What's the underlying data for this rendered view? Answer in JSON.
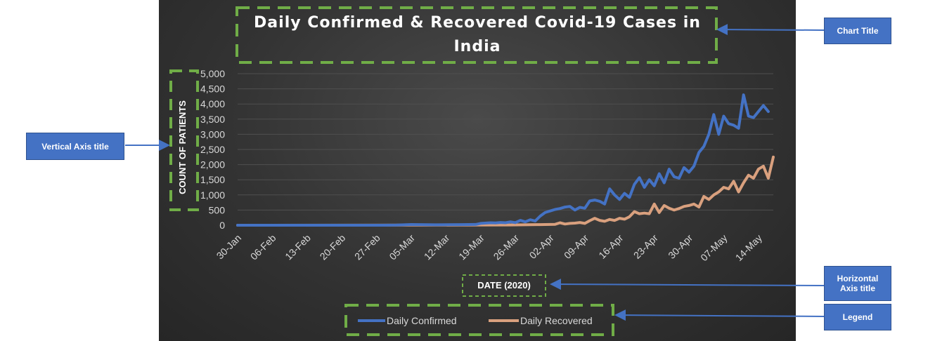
{
  "chart_data": {
    "type": "line",
    "title": "Daily Confirmed & Recovered Covid-19 Cases in India",
    "xlabel": "DATE (2020)",
    "ylabel": "COUNT OF PATIENTS",
    "ylim": [
      0,
      5000
    ],
    "yticks": [
      "5,000",
      "4,500",
      "4,000",
      "3,500",
      "3,000",
      "2,500",
      "2,000",
      "1,500",
      "1,000",
      "500",
      "0"
    ],
    "xticks": [
      "30-Jan",
      "06-Feb",
      "13-Feb",
      "20-Feb",
      "27-Feb",
      "05-Mar",
      "12-Mar",
      "19-Mar",
      "26-Mar",
      "02-Apr",
      "09-Apr",
      "16-Apr",
      "23-Apr",
      "30-Apr",
      "07-May",
      "14-May"
    ],
    "grid": true,
    "legend_position": "bottom",
    "series": [
      {
        "name": "Daily Confirmed",
        "color": "#4472c4",
        "points": [
          [
            "2020-01-30",
            0
          ],
          [
            "2020-02-28",
            0
          ],
          [
            "2020-03-02",
            5
          ],
          [
            "2020-03-05",
            22
          ],
          [
            "2020-03-10",
            15
          ],
          [
            "2020-03-15",
            20
          ],
          [
            "2020-03-18",
            25
          ],
          [
            "2020-03-19",
            60
          ],
          [
            "2020-03-21",
            80
          ],
          [
            "2020-03-22",
            75
          ],
          [
            "2020-03-23",
            90
          ],
          [
            "2020-03-24",
            80
          ],
          [
            "2020-03-25",
            110
          ],
          [
            "2020-03-26",
            85
          ],
          [
            "2020-03-27",
            160
          ],
          [
            "2020-03-28",
            110
          ],
          [
            "2020-03-29",
            180
          ],
          [
            "2020-03-30",
            140
          ],
          [
            "2020-03-31",
            300
          ],
          [
            "2020-04-01",
            420
          ],
          [
            "2020-04-02",
            470
          ],
          [
            "2020-04-03",
            520
          ],
          [
            "2020-04-04",
            550
          ],
          [
            "2020-04-05",
            600
          ],
          [
            "2020-04-06",
            620
          ],
          [
            "2020-04-07",
            500
          ],
          [
            "2020-04-08",
            590
          ],
          [
            "2020-04-09",
            560
          ],
          [
            "2020-04-10",
            800
          ],
          [
            "2020-04-11",
            830
          ],
          [
            "2020-04-12",
            790
          ],
          [
            "2020-04-13",
            700
          ],
          [
            "2020-04-14",
            1200
          ],
          [
            "2020-04-15",
            1000
          ],
          [
            "2020-04-16",
            850
          ],
          [
            "2020-04-17",
            1050
          ],
          [
            "2020-04-18",
            920
          ],
          [
            "2020-04-19",
            1350
          ],
          [
            "2020-04-20",
            1570
          ],
          [
            "2020-04-21",
            1250
          ],
          [
            "2020-04-22",
            1500
          ],
          [
            "2020-04-23",
            1300
          ],
          [
            "2020-04-24",
            1700
          ],
          [
            "2020-04-25",
            1400
          ],
          [
            "2020-04-26",
            1850
          ],
          [
            "2020-04-27",
            1600
          ],
          [
            "2020-04-28",
            1550
          ],
          [
            "2020-04-29",
            1900
          ],
          [
            "2020-04-30",
            1750
          ],
          [
            "2020-05-01",
            1950
          ],
          [
            "2020-05-02",
            2400
          ],
          [
            "2020-05-03",
            2600
          ],
          [
            "2020-05-04",
            3000
          ],
          [
            "2020-05-05",
            3650
          ],
          [
            "2020-05-06",
            3000
          ],
          [
            "2020-05-07",
            3600
          ],
          [
            "2020-05-08",
            3350
          ],
          [
            "2020-05-09",
            3300
          ],
          [
            "2020-05-10",
            3200
          ],
          [
            "2020-05-11",
            4300
          ],
          [
            "2020-05-12",
            3600
          ],
          [
            "2020-05-13",
            3550
          ],
          [
            "2020-05-14",
            3750
          ],
          [
            "2020-05-15",
            3950
          ],
          [
            "2020-05-16",
            3750
          ]
        ]
      },
      {
        "name": "Daily Recovered",
        "color": "#d9a07e",
        "points": [
          [
            "2020-01-30",
            0
          ],
          [
            "2020-03-15",
            5
          ],
          [
            "2020-03-25",
            10
          ],
          [
            "2020-03-31",
            20
          ],
          [
            "2020-04-03",
            30
          ],
          [
            "2020-04-04",
            80
          ],
          [
            "2020-04-05",
            40
          ],
          [
            "2020-04-06",
            60
          ],
          [
            "2020-04-07",
            70
          ],
          [
            "2020-04-08",
            90
          ],
          [
            "2020-04-09",
            60
          ],
          [
            "2020-04-10",
            150
          ],
          [
            "2020-04-11",
            230
          ],
          [
            "2020-04-12",
            160
          ],
          [
            "2020-04-13",
            130
          ],
          [
            "2020-04-14",
            190
          ],
          [
            "2020-04-15",
            160
          ],
          [
            "2020-04-16",
            230
          ],
          [
            "2020-04-17",
            200
          ],
          [
            "2020-04-18",
            280
          ],
          [
            "2020-04-19",
            450
          ],
          [
            "2020-04-20",
            380
          ],
          [
            "2020-04-21",
            400
          ],
          [
            "2020-04-22",
            380
          ],
          [
            "2020-04-23",
            700
          ],
          [
            "2020-04-24",
            420
          ],
          [
            "2020-04-25",
            650
          ],
          [
            "2020-04-26",
            560
          ],
          [
            "2020-04-27",
            500
          ],
          [
            "2020-04-28",
            550
          ],
          [
            "2020-04-29",
            620
          ],
          [
            "2020-04-30",
            650
          ],
          [
            "2020-05-01",
            700
          ],
          [
            "2020-05-02",
            600
          ],
          [
            "2020-05-03",
            950
          ],
          [
            "2020-05-04",
            850
          ],
          [
            "2020-05-05",
            1000
          ],
          [
            "2020-05-06",
            1100
          ],
          [
            "2020-05-07",
            1250
          ],
          [
            "2020-05-08",
            1200
          ],
          [
            "2020-05-09",
            1450
          ],
          [
            "2020-05-10",
            1100
          ],
          [
            "2020-05-11",
            1400
          ],
          [
            "2020-05-12",
            1650
          ],
          [
            "2020-05-13",
            1550
          ],
          [
            "2020-05-14",
            1850
          ],
          [
            "2020-05-15",
            1950
          ],
          [
            "2020-05-16",
            1550
          ],
          [
            "2020-05-17",
            2250
          ]
        ]
      }
    ]
  },
  "annotations": {
    "chart_title": "Chart Title",
    "vertical_axis_title": "Vertical Axis title",
    "horizontal_axis_title": "Horizontal Axis title",
    "legend": "Legend"
  },
  "colors": {
    "panel_background": "#333333",
    "callout_box": "#4472c4",
    "highlight_dash": "#70ad47",
    "axis_text": "#d9d9d9",
    "gridline": "#4f4f4f",
    "title_text": "#ffffff"
  }
}
